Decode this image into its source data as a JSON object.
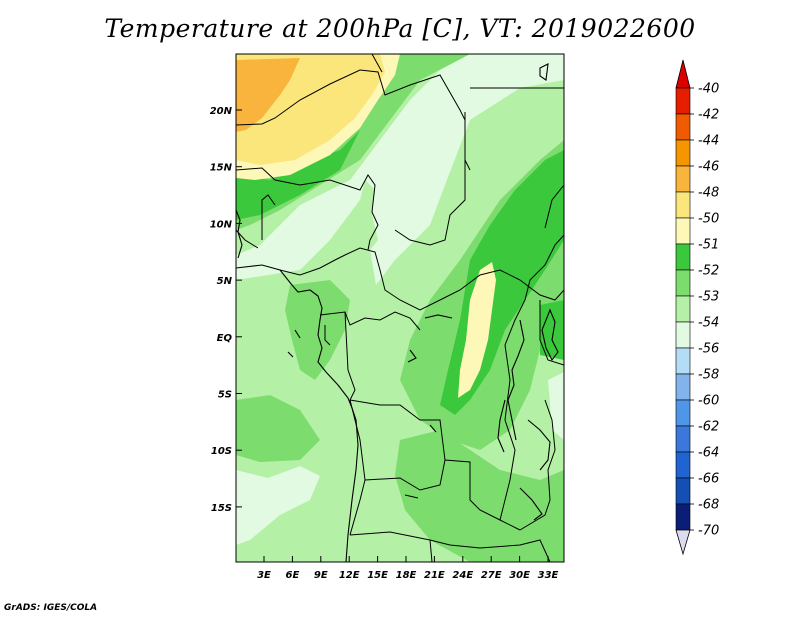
{
  "title": "Temperature at 200hPa [C], VT: 2019022600",
  "credit": "GrADS: IGES/COLA",
  "map": {
    "lon_labels": [
      "3E",
      "6E",
      "9E",
      "12E",
      "15E",
      "18E",
      "21E",
      "24E",
      "27E",
      "30E",
      "33E"
    ],
    "lat_labels": [
      "20N",
      "15N",
      "10N",
      "5N",
      "EQ",
      "5S",
      "10S",
      "15S"
    ]
  },
  "colorbar": {
    "levels": [
      "-40",
      "-42",
      "-44",
      "-46",
      "-48",
      "-50",
      "-51",
      "-52",
      "-53",
      "-54",
      "-56",
      "-58",
      "-60",
      "-62",
      "-64",
      "-66",
      "-68",
      "-70"
    ],
    "colors": [
      "#e61e00",
      "#f05a00",
      "#f59600",
      "#f8b43c",
      "#fae67a",
      "#fdf8b8",
      "#3cc83c",
      "#7ddc6e",
      "#b4f0a6",
      "#e1fae1",
      "#b4dcf6",
      "#82b4eb",
      "#5096e6",
      "#3c78dc",
      "#2064d2",
      "#1450b4",
      "#0a1e78",
      "#dcdcf0"
    ],
    "max_color": "#dc0000"
  }
}
